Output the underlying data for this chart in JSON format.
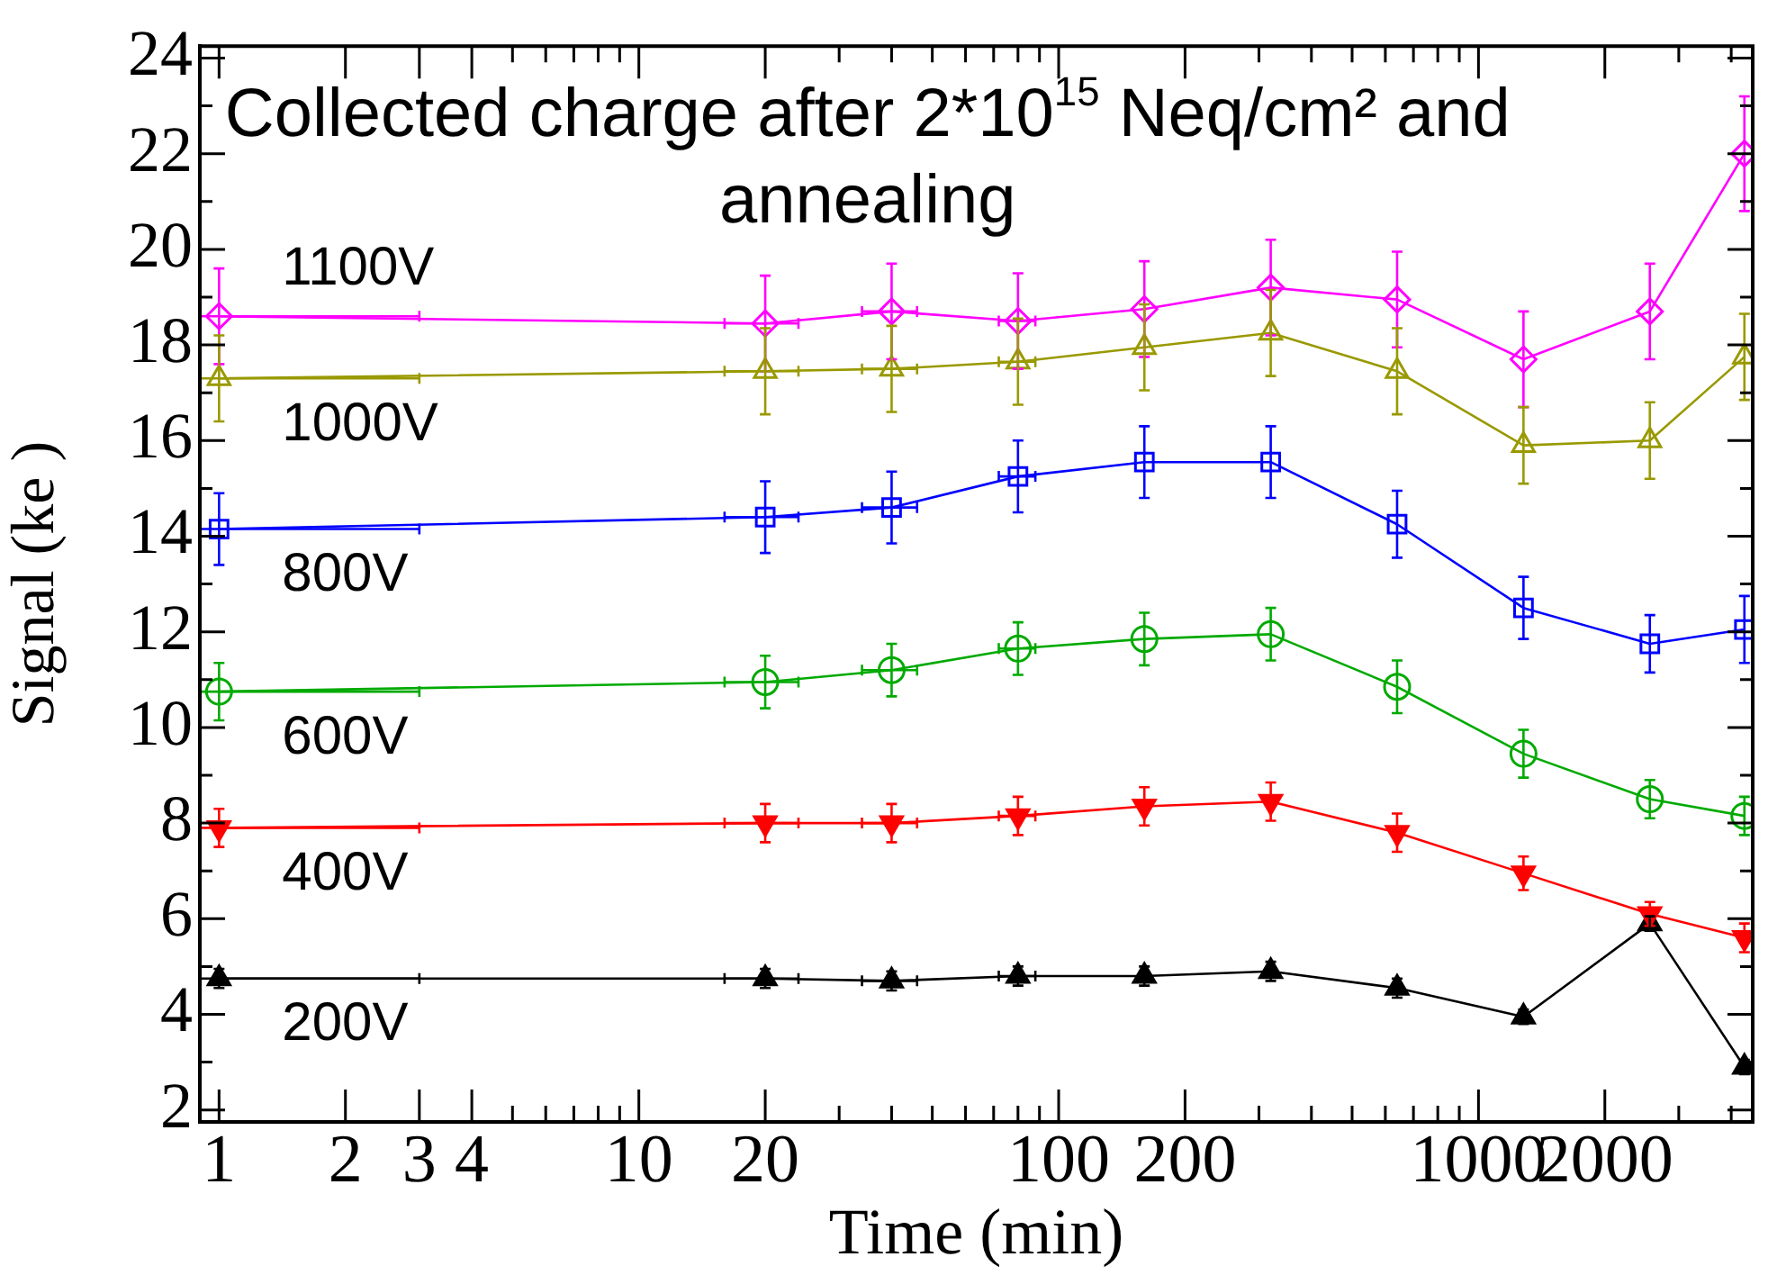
{
  "chart_data": {
    "type": "line",
    "title": "Collected charge after 2*10$^{15}$ Neq/cm² and annealing",
    "xlabel": "Time (min)",
    "ylabel": "Signal (ke )",
    "log": "x",
    "grid": false,
    "legend": false,
    "line_style": "solid",
    "x": [
      1,
      20,
      40,
      80,
      160,
      320,
      640,
      1280,
      2560,
      4300
    ],
    "xlim": [
      0.9,
      4500
    ],
    "xticks": [
      1,
      2,
      3,
      4,
      {
        "value": 5,
        "label": null
      },
      {
        "value": 6,
        "label": null
      },
      {
        "value": 7,
        "label": null
      },
      {
        "value": 8,
        "label": null
      },
      {
        "value": 9,
        "label": null
      },
      10,
      20,
      {
        "value": 30,
        "label": null
      },
      {
        "value": 40,
        "label": null
      },
      {
        "value": 50,
        "label": null
      },
      {
        "value": 60,
        "label": null
      },
      {
        "value": 70,
        "label": null
      },
      {
        "value": 80,
        "label": null
      },
      {
        "value": 90,
        "label": null
      },
      100,
      200,
      {
        "value": 300,
        "label": null
      },
      {
        "value": 400,
        "label": null
      },
      {
        "value": 500,
        "label": null
      },
      {
        "value": 600,
        "label": null
      },
      {
        "value": 700,
        "label": null
      },
      {
        "value": 800,
        "label": null
      },
      {
        "value": 900,
        "label": null
      },
      1000,
      2000,
      {
        "value": 3000,
        "label": null
      },
      {
        "value": 4000,
        "label": null
      }
    ],
    "ylim": [
      1.75,
      24.25
    ],
    "yticks": [
      2,
      {
        "value": 3,
        "label": null
      },
      4,
      {
        "value": 5,
        "label": null
      },
      6,
      {
        "value": 7,
        "label": null
      },
      8,
      {
        "value": 9,
        "label": null
      },
      10,
      {
        "value": 11,
        "label": null
      },
      12,
      {
        "value": 13,
        "label": null
      },
      14,
      {
        "value": 15,
        "label": null
      },
      16,
      {
        "value": 17,
        "label": null
      },
      18,
      {
        "value": 19,
        "label": null
      },
      20,
      {
        "value": 21,
        "label": null
      },
      22,
      {
        "value": 23,
        "label": null
      },
      24
    ],
    "series": [
      {
        "name": "1100V",
        "color": "#ff00ff",
        "marker": "diamond",
        "values": [
          18.6,
          18.45,
          18.7,
          18.5,
          18.75,
          19.2,
          18.95,
          17.7,
          18.7,
          22.0
        ],
        "errors": [
          1.0,
          1.0,
          1.0,
          1.0,
          1.0,
          1.0,
          1.0,
          1.0,
          1.0,
          1.2
        ],
        "xerrors": [
          [
            0.9,
            3
          ],
          4,
          6,
          8,
          null,
          null,
          null,
          null,
          null,
          null
        ]
      },
      {
        "name": "1000V",
        "color": "#999900",
        "marker": "triangle",
        "values": [
          17.3,
          17.45,
          17.5,
          17.65,
          17.95,
          18.25,
          17.45,
          15.9,
          16.0,
          17.75
        ],
        "errors": [
          0.9,
          0.9,
          0.9,
          0.9,
          0.9,
          0.9,
          0.9,
          0.8,
          0.8,
          0.9
        ],
        "xerrors": [
          [
            0.9,
            3
          ],
          4,
          6,
          8,
          null,
          null,
          null,
          null,
          null,
          null
        ]
      },
      {
        "name": "800V",
        "color": "#0000ff",
        "marker": "square",
        "values": [
          14.15,
          14.4,
          14.6,
          15.25,
          15.55,
          15.55,
          14.25,
          12.5,
          11.75,
          12.05
        ],
        "errors": [
          0.75,
          0.75,
          0.75,
          0.75,
          0.75,
          0.75,
          0.7,
          0.65,
          0.6,
          0.7
        ],
        "xerrors": [
          [
            0.9,
            3
          ],
          4,
          6,
          8,
          null,
          null,
          null,
          null,
          null,
          null
        ]
      },
      {
        "name": "600V",
        "color": "#00aa00",
        "marker": "circle",
        "values": [
          10.75,
          10.95,
          11.2,
          11.65,
          11.85,
          11.95,
          10.85,
          9.45,
          8.5,
          8.15
        ],
        "errors": [
          0.6,
          0.55,
          0.55,
          0.55,
          0.55,
          0.55,
          0.55,
          0.5,
          0.4,
          0.4
        ],
        "xerrors": [
          [
            0.9,
            3
          ],
          4,
          6,
          8,
          null,
          null,
          null,
          null,
          null,
          null
        ]
      },
      {
        "name": "400V",
        "color": "#ff0000",
        "marker": "triangle_down_filled",
        "values": [
          7.9,
          8.0,
          8.0,
          8.15,
          8.35,
          8.45,
          7.8,
          6.95,
          6.1,
          5.6
        ],
        "errors": [
          0.4,
          0.4,
          0.4,
          0.4,
          0.4,
          0.4,
          0.4,
          0.35,
          0.25,
          0.3
        ],
        "xerrors": [
          [
            0.9,
            3
          ],
          4,
          6,
          8,
          null,
          null,
          null,
          null,
          null,
          null
        ]
      },
      {
        "name": "200V",
        "color": "#000000",
        "marker": "triangle_filled",
        "values": [
          4.75,
          4.75,
          4.7,
          4.8,
          4.8,
          4.9,
          4.55,
          3.95,
          5.9,
          2.9
        ],
        "errors": [
          0.2,
          0.2,
          0.2,
          0.2,
          0.2,
          0.2,
          0.2,
          0.15,
          0.15,
          0.15
        ],
        "xerrors": [
          [
            0.9,
            3
          ],
          4,
          6,
          8,
          null,
          null,
          null,
          null,
          null,
          null
        ]
      }
    ]
  }
}
